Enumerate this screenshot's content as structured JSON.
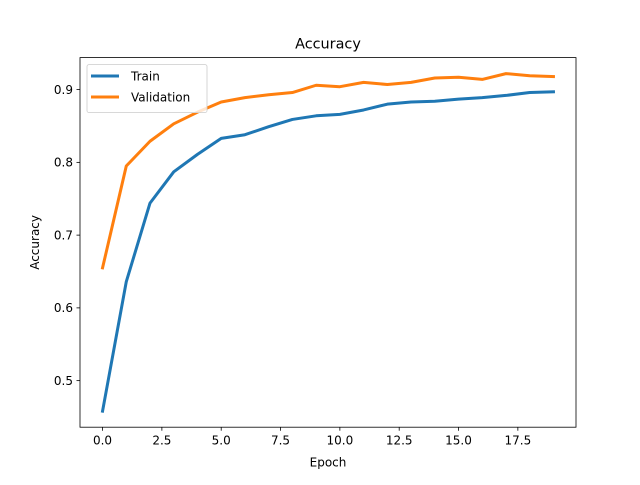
{
  "chart_data": {
    "type": "line",
    "title": "Accuracy",
    "xlabel": "Epoch",
    "ylabel": "Accuracy",
    "x": [
      0,
      1,
      2,
      3,
      4,
      5,
      6,
      7,
      8,
      9,
      10,
      11,
      12,
      13,
      14,
      15,
      16,
      17,
      18,
      19
    ],
    "xlim": [
      -0.95,
      19.95
    ],
    "ylim": [
      0.436,
      0.944
    ],
    "xticks": [
      0.0,
      2.5,
      5.0,
      7.5,
      10.0,
      12.5,
      15.0,
      17.5
    ],
    "xtick_labels": [
      "0.0",
      "2.5",
      "5.0",
      "7.5",
      "10.0",
      "12.5",
      "15.0",
      "17.5"
    ],
    "yticks": [
      0.5,
      0.6,
      0.7,
      0.8,
      0.9
    ],
    "ytick_labels": [
      "0.5",
      "0.6",
      "0.7",
      "0.8",
      "0.9"
    ],
    "grid": false,
    "legend_position": "top-left",
    "series": [
      {
        "name": "Train",
        "color": "#1f77b4",
        "values": [
          0.458,
          0.636,
          0.744,
          0.787,
          0.811,
          0.833,
          0.838,
          0.849,
          0.859,
          0.864,
          0.866,
          0.872,
          0.88,
          0.883,
          0.884,
          0.887,
          0.889,
          0.892,
          0.896,
          0.897
        ]
      },
      {
        "name": "Validation",
        "color": "#ff7f0e",
        "values": [
          0.655,
          0.795,
          0.829,
          0.853,
          0.869,
          0.883,
          0.889,
          0.893,
          0.896,
          0.906,
          0.904,
          0.91,
          0.907,
          0.91,
          0.916,
          0.917,
          0.914,
          0.922,
          0.919,
          0.918
        ]
      }
    ]
  }
}
